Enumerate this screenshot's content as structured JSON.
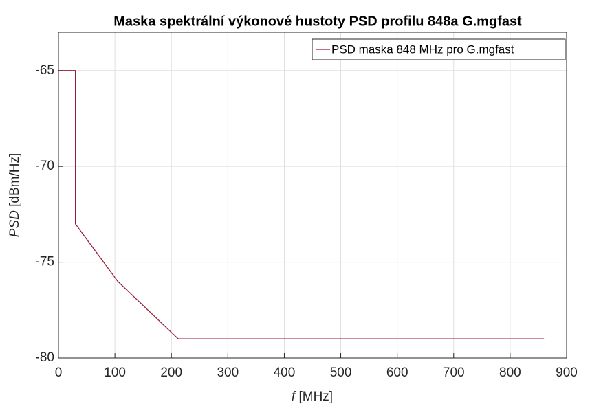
{
  "chart_data": {
    "type": "line",
    "title": "Maska spektrální výkonové hustoty PSD profilu 848a G.mgfast",
    "xlabel": {
      "symbol": "f",
      "unit": "[MHz]"
    },
    "ylabel": {
      "symbol": "PSD",
      "unit": "[dBm/Hz]"
    },
    "x": [
      0,
      30,
      30,
      105,
      212,
      860
    ],
    "series": [
      {
        "name": "PSD maska 848 MHz pro G.mgfast",
        "color": "#9b1b3a",
        "values": [
          -65,
          -65,
          -73,
          -76,
          -79,
          -79
        ]
      }
    ],
    "xlim": [
      0,
      900
    ],
    "xticks": [
      0,
      100,
      200,
      300,
      400,
      500,
      600,
      700,
      800,
      900
    ],
    "ylim": [
      -80,
      -63
    ],
    "yticks": [
      -80,
      -75,
      -70,
      -65
    ],
    "grid": true,
    "legend": "top-right"
  }
}
